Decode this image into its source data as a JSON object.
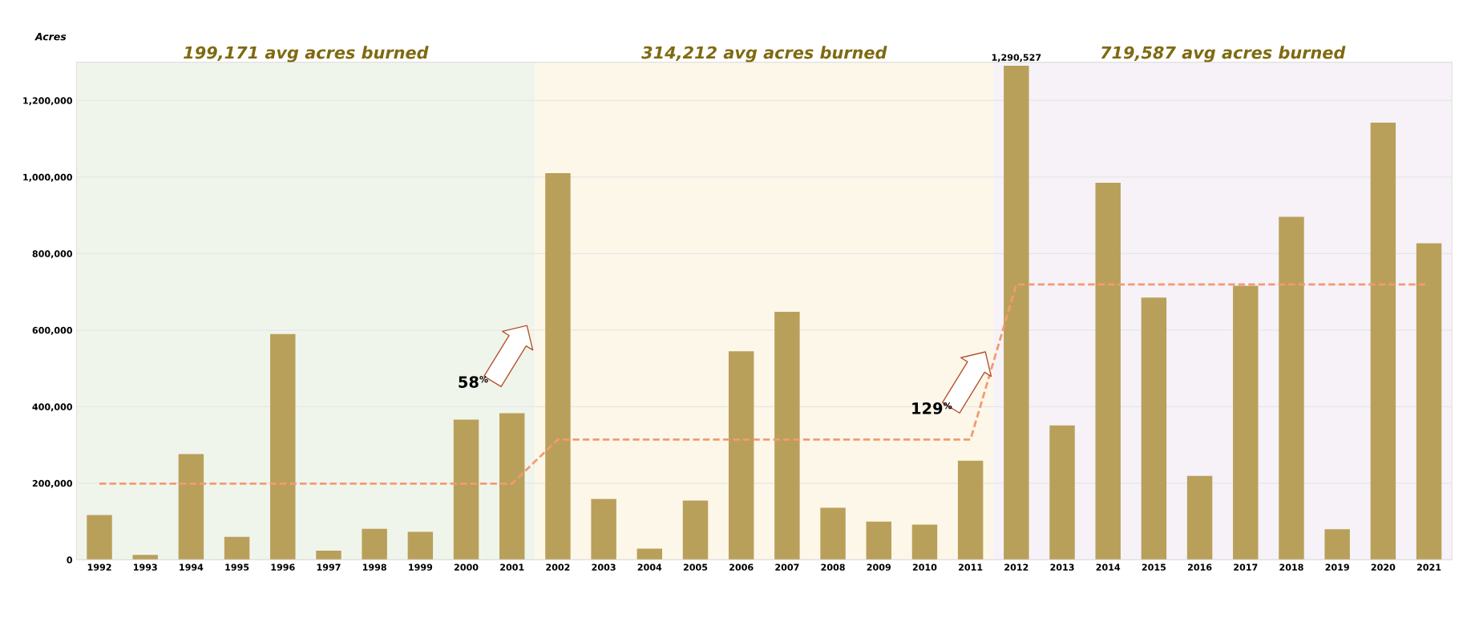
{
  "chart_data": {
    "type": "bar",
    "ylabel": "Acres",
    "categories": [
      "1992",
      "1993",
      "1994",
      "1995",
      "1996",
      "1997",
      "1998",
      "1999",
      "2000",
      "2001",
      "2002",
      "2003",
      "2004",
      "2005",
      "2006",
      "2007",
      "2008",
      "2009",
      "2010",
      "2011",
      "2012",
      "2013",
      "2014",
      "2015",
      "2016",
      "2017",
      "2018",
      "2019",
      "2020",
      "2021"
    ],
    "series": [
      {
        "color": "#b9a05a",
        "values": [
          117000,
          13000,
          276000,
          60000,
          590000,
          24000,
          81000,
          73000,
          366000,
          383000,
          1010000,
          159000,
          29000,
          155000,
          545000,
          648000,
          136000,
          100000,
          92000,
          259000,
          1290527,
          351000,
          985000,
          685000,
          219000,
          716000,
          896000,
          80000,
          1142000,
          827000
        ],
        "value_labels": [
          null,
          null,
          null,
          null,
          null,
          null,
          null,
          null,
          null,
          null,
          null,
          null,
          null,
          null,
          null,
          null,
          null,
          null,
          null,
          null,
          "1,290,527",
          null,
          null,
          null,
          null,
          null,
          null,
          null,
          null,
          null
        ]
      },
      {
        "type": "line",
        "color": "#f29a72",
        "line_style": "dashed",
        "marker": "none",
        "values": [
          199171,
          199171,
          199171,
          199171,
          199171,
          199171,
          199171,
          199171,
          199171,
          199171,
          314212,
          314212,
          314212,
          314212,
          314212,
          314212,
          314212,
          314212,
          314212,
          314212,
          719587,
          719587,
          719587,
          719587,
          719587,
          719587,
          719587,
          719587,
          719587,
          719587
        ]
      }
    ],
    "bands": [
      {
        "axis": "x",
        "from": "1992",
        "to": "2001",
        "label": "199,171 avg acres burned",
        "color": "#f0f5ec"
      },
      {
        "axis": "x",
        "from": "2002",
        "to": "2011",
        "label": "314,212 avg acres burned",
        "color": "#fdf7e9"
      },
      {
        "axis": "x",
        "from": "2012",
        "to": "2021",
        "label": "719,587 avg acres burned",
        "color": "#f6f2f8"
      }
    ],
    "annotations": [
      "58$^{%}$",
      "129$^{%}$"
    ],
    "ylim": [
      0,
      1300000
    ],
    "yticks": [
      {
        "value": 0,
        "label": "0"
      },
      {
        "value": 200000,
        "label": "200,000"
      },
      {
        "value": 400000,
        "label": "400,000"
      },
      {
        "value": 600000,
        "label": "600,000"
      },
      {
        "value": 800000,
        "label": "800,000"
      },
      {
        "value": 1000000,
        "label": "1,000,000"
      },
      {
        "value": 1200000,
        "label": "1,200,000"
      }
    ],
    "grid": "y",
    "legend": false
  }
}
